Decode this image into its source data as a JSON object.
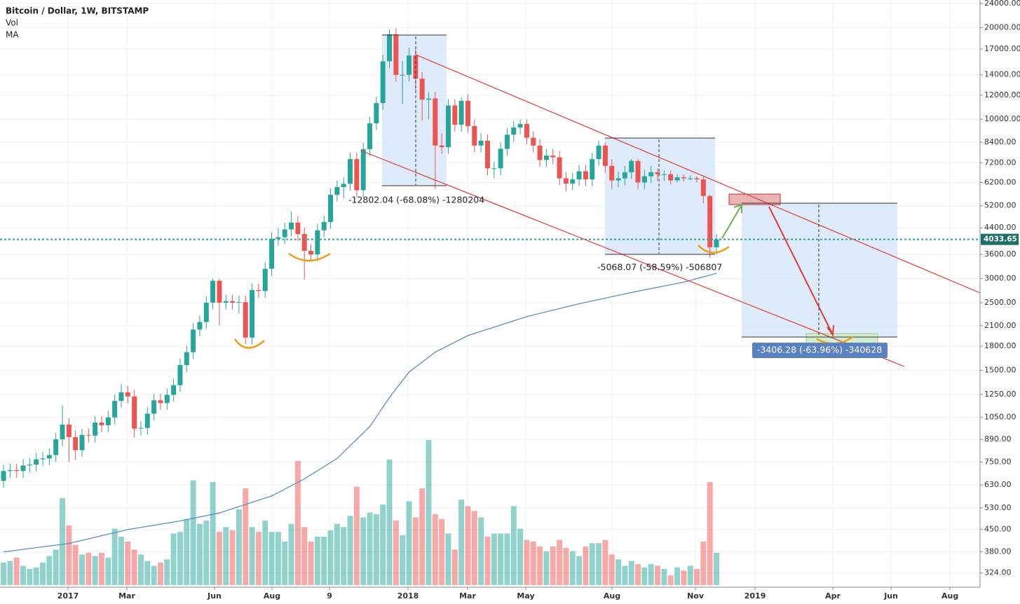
{
  "chart_data": {
    "type": "candlestick",
    "title": "Bitcoin / Dollar, 1W, BITSTAMP",
    "legend": [
      "Vol",
      "MA"
    ],
    "up_color": "#26a69a",
    "down_color": "#ef5350",
    "log_scale": true,
    "grid": true,
    "x": [
      0,
      1,
      2,
      3,
      4,
      5,
      6,
      7,
      8,
      9,
      10,
      11,
      12,
      13,
      14,
      15,
      16,
      17,
      18,
      19,
      20,
      21,
      22,
      23,
      24,
      25,
      26,
      27,
      28,
      29,
      30,
      31,
      32,
      33,
      34,
      35,
      36,
      37,
      38,
      39,
      40,
      41,
      42,
      43,
      44,
      45,
      46,
      47,
      48,
      49,
      50,
      51,
      52,
      53,
      54,
      55,
      56,
      57,
      58,
      59,
      60,
      61,
      62,
      63,
      64,
      65,
      66,
      67,
      68,
      69,
      70,
      71,
      72,
      73,
      74,
      75,
      76,
      77,
      78,
      79,
      80,
      81,
      82,
      83,
      84,
      85,
      86,
      87,
      88,
      89,
      90,
      91,
      92,
      93,
      94,
      95,
      96,
      97,
      98,
      99,
      100,
      101,
      102,
      103,
      104,
      105,
      106,
      107,
      108,
      109
    ],
    "candles": [
      [
        650,
        735,
        618,
        700
      ],
      [
        700,
        740,
        665,
        705
      ],
      [
        705,
        740,
        665,
        700
      ],
      [
        700,
        767,
        665,
        730
      ],
      [
        730,
        772,
        694,
        735
      ],
      [
        735,
        803,
        698,
        765
      ],
      [
        765,
        809,
        727,
        770
      ],
      [
        770,
        830,
        732,
        790
      ],
      [
        790,
        935,
        750,
        890
      ],
      [
        890,
        1150,
        845,
        995
      ],
      [
        995,
        1045,
        750,
        905
      ],
      [
        905,
        950,
        760,
        820
      ],
      [
        820,
        966,
        779,
        920
      ],
      [
        920,
        966,
        869,
        915
      ],
      [
        915,
        1061,
        869,
        1010
      ],
      [
        1010,
        1061,
        940,
        990
      ],
      [
        990,
        1103,
        940,
        1050
      ],
      [
        1050,
        1250,
        998,
        1190
      ],
      [
        1190,
        1350,
        1130,
        1270
      ],
      [
        1270,
        1334,
        1169,
        1230
      ],
      [
        1230,
        1292,
        900,
        965
      ],
      [
        965,
        1019,
        917,
        970
      ],
      [
        970,
        1134,
        922,
        1080
      ],
      [
        1080,
        1255,
        1026,
        1195
      ],
      [
        1195,
        1255,
        1112,
        1170
      ],
      [
        1170,
        1307,
        1112,
        1245
      ],
      [
        1245,
        1407,
        1183,
        1340
      ],
      [
        1340,
        1638,
        1273,
        1560
      ],
      [
        1560,
        1806,
        1482,
        1720
      ],
      [
        1720,
        2142,
        1634,
        2040
      ],
      [
        2040,
        2268,
        1938,
        2160
      ],
      [
        2160,
        2625,
        2052,
        2500
      ],
      [
        2500,
        3000,
        2375,
        2950
      ],
      [
        2950,
        3000,
        2100,
        2500
      ],
      [
        2500,
        2656,
        2375,
        2530
      ],
      [
        2530,
        2656,
        2375,
        2500
      ],
      [
        2500,
        2635,
        2300,
        2510
      ],
      [
        2510,
        2636,
        1830,
        1920
      ],
      [
        1920,
        2888,
        1824,
        2750
      ],
      [
        2750,
        2888,
        2594,
        2730
      ],
      [
        2730,
        3392,
        2594,
        3230
      ],
      [
        3230,
        4253,
        3069,
        4050
      ],
      [
        4050,
        4400,
        3848,
        4100
      ],
      [
        4100,
        4568,
        3895,
        4350
      ],
      [
        4350,
        4980,
        4133,
        4580
      ],
      [
        4580,
        4809,
        3990,
        4200
      ],
      [
        4200,
        4410,
        2980,
        3700
      ],
      [
        3700,
        3885,
        3420,
        3600
      ],
      [
        3600,
        4536,
        3420,
        4320
      ],
      [
        4320,
        4830,
        4104,
        4600
      ],
      [
        4600,
        5933,
        4370,
        5650
      ],
      [
        5650,
        6290,
        5368,
        5990
      ],
      [
        5990,
        6447,
        5500,
        6140
      ],
      [
        6140,
        7770,
        5833,
        7400
      ],
      [
        7400,
        7770,
        5558,
        5850
      ],
      [
        5850,
        8379,
        5558,
        7980
      ],
      [
        7980,
        10185,
        7581,
        9700
      ],
      [
        9700,
        11865,
        9215,
        11300
      ],
      [
        11300,
        16275,
        10735,
        15500
      ],
      [
        15500,
        19700,
        14725,
        19000
      ],
      [
        19000,
        19900,
        13300,
        14000
      ],
      [
        14000,
        15500,
        11200,
        14000
      ],
      [
        14000,
        17200,
        13300,
        16200
      ],
      [
        16200,
        17100,
        12400,
        13600
      ],
      [
        13600,
        14280,
        9900,
        11600
      ],
      [
        11600,
        12285,
        10000,
        11700
      ],
      [
        11700,
        12285,
        5900,
        8200
      ],
      [
        8200,
        9000,
        7700,
        8100
      ],
      [
        8100,
        11655,
        7695,
        11100
      ],
      [
        11100,
        11655,
        9120,
        9600
      ],
      [
        9600,
        11800,
        9120,
        11500
      ],
      [
        11500,
        12075,
        9025,
        9500
      ],
      [
        9500,
        9975,
        7790,
        8200
      ],
      [
        8200,
        9000,
        7790,
        8500
      ],
      [
        8500,
        8925,
        6555,
        6900
      ],
      [
        6900,
        7245,
        6400,
        6900
      ],
      [
        6900,
        8400,
        6555,
        8000
      ],
      [
        8000,
        9345,
        7600,
        8900
      ],
      [
        8900,
        9870,
        8455,
        9400
      ],
      [
        9400,
        10000,
        8930,
        9650
      ],
      [
        9650,
        10000,
        8265,
        8700
      ],
      [
        8700,
        9135,
        7790,
        8200
      ],
      [
        8200,
        8610,
        6983,
        7350
      ],
      [
        7350,
        7980,
        6983,
        7600
      ],
      [
        7600,
        7980,
        7125,
        7500
      ],
      [
        7500,
        7875,
        6080,
        6400
      ],
      [
        6400,
        6720,
        5800,
        6150
      ],
      [
        6150,
        6668,
        5843,
        6350
      ],
      [
        6350,
        7088,
        6033,
        6750
      ],
      [
        6750,
        7088,
        6033,
        6350
      ],
      [
        6350,
        7770,
        6033,
        7400
      ],
      [
        7400,
        8500,
        7030,
        8200
      ],
      [
        8200,
        8400,
        6680,
        7030
      ],
      [
        7030,
        7382,
        5900,
        6300
      ],
      [
        6300,
        6720,
        5985,
        6400
      ],
      [
        6400,
        7035,
        6080,
        6700
      ],
      [
        6700,
        7400,
        6365,
        7300
      ],
      [
        7300,
        7400,
        5890,
        6200
      ],
      [
        6200,
        6825,
        5890,
        6500
      ],
      [
        6500,
        7035,
        6175,
        6700
      ],
      [
        6700,
        6900,
        6270,
        6600
      ],
      [
        6600,
        6800,
        6270,
        6600
      ],
      [
        6600,
        6800,
        6100,
        6300
      ],
      [
        6300,
        6600,
        6200,
        6450
      ],
      [
        6450,
        6600,
        6250,
        6400
      ],
      [
        6400,
        6550,
        6300,
        6400
      ],
      [
        6400,
        6500,
        6200,
        6350
      ],
      [
        6350,
        6500,
        5300,
        5600
      ],
      [
        5600,
        5650,
        3500,
        3800
      ],
      [
        3800,
        4200,
        3600,
        4033.65
      ]
    ],
    "volume": [
      14,
      15,
      17,
      12,
      10,
      11,
      14,
      18,
      22,
      54,
      37,
      25,
      19,
      20,
      18,
      20,
      17,
      35,
      30,
      27,
      22,
      19,
      15,
      12,
      14,
      16,
      32,
      33,
      41,
      65,
      38,
      40,
      64,
      33,
      36,
      34,
      47,
      60,
      36,
      33,
      40,
      33,
      33,
      27,
      38,
      77,
      36,
      27,
      30,
      30,
      34,
      38,
      36,
      43,
      61,
      42,
      45,
      44,
      50,
      78,
      40,
      31,
      52,
      42,
      60,
      90,
      44,
      41,
      32,
      22,
      53,
      49,
      46,
      42,
      30,
      32,
      32,
      32,
      49,
      35,
      28,
      27,
      24,
      21,
      24,
      28,
      23,
      21,
      18,
      24,
      26,
      26,
      28,
      19,
      16,
      12,
      15,
      13,
      11,
      13,
      12,
      10,
      6,
      11,
      9,
      12,
      10,
      27,
      64,
      20
    ],
    "y2lim": [
      0,
      100
    ],
    "ma": {
      "name": "MA",
      "color": "#5b8fc4",
      "x": [
        0,
        10,
        19,
        27,
        33,
        41,
        46,
        51,
        56,
        59,
        62,
        66,
        71,
        80,
        88,
        96,
        104,
        109
      ],
      "values": [
        380,
        405,
        450,
        480,
        510,
        580,
        660,
        770,
        980,
        1220,
        1480,
        1720,
        1950,
        2250,
        2480,
        2700,
        2920,
        3120
      ]
    },
    "last_price": 4033.65,
    "annotations": [
      "-12802.04 (-68.08%) -1280204",
      "-5068.07 (-58.59%) -506807",
      "-3406.28 (-63.96%) -340628"
    ],
    "xlim": [
      -0.54,
      149.3
    ],
    "xticks": [
      {
        "value": 9.86,
        "label": "2017"
      },
      {
        "value": 18.86,
        "label": "Mar"
      },
      {
        "value": 32.26,
        "label": "Jun"
      },
      {
        "value": 41.05,
        "label": "Aug"
      },
      {
        "value": 49.84,
        "label": "9"
      },
      {
        "value": 61.84,
        "label": "2018"
      },
      {
        "value": 70.95,
        "label": "Mar"
      },
      {
        "value": 79.85,
        "label": "May"
      },
      {
        "value": 93.03,
        "label": "Aug"
      },
      {
        "value": 105.79,
        "label": "Nov"
      },
      {
        "value": 114.9,
        "label": "2019"
      },
      {
        "value": 126.8,
        "label": "Apr"
      },
      {
        "value": 135.7,
        "label": "Jun"
      },
      {
        "value": 144.7,
        "label": "Aug"
      }
    ],
    "ylim": [
      291,
      24640
    ],
    "yticks": [
      {
        "value": 24000,
        "label": "24000.00"
      },
      {
        "value": 20000,
        "label": "20000.00"
      },
      {
        "value": 17000,
        "label": "17000.00"
      },
      {
        "value": 14000,
        "label": "14000.00"
      },
      {
        "value": 12000,
        "label": "12000.00"
      },
      {
        "value": 10000,
        "label": "10000.00"
      },
      {
        "value": 8400,
        "label": "8400.00"
      },
      {
        "value": 7200,
        "label": "7200.00"
      },
      {
        "value": 6200,
        "label": "6200.00"
      },
      {
        "value": 5200,
        "label": "5200.00"
      },
      {
        "value": 4400,
        "label": "4400.00"
      },
      {
        "value": 3600,
        "label": "3600.00"
      },
      {
        "value": 3000,
        "label": "3000.00"
      },
      {
        "value": 2500,
        "label": "2500.00"
      },
      {
        "value": 2100,
        "label": "2100.00"
      },
      {
        "value": 1800,
        "label": "1800.00"
      },
      {
        "value": 1500,
        "label": "1500.00"
      },
      {
        "value": 1250,
        "label": "1250.00"
      },
      {
        "value": 1050,
        "label": "1050.00"
      },
      {
        "value": 890,
        "label": "890.00"
      },
      {
        "value": 750,
        "label": "750.00"
      },
      {
        "value": 630,
        "label": "630.00"
      },
      {
        "value": 530,
        "label": "530.00"
      },
      {
        "value": 450,
        "label": "450.00"
      },
      {
        "value": 380,
        "label": "380.00"
      },
      {
        "value": 324,
        "label": "324.00"
      }
    ]
  }
}
